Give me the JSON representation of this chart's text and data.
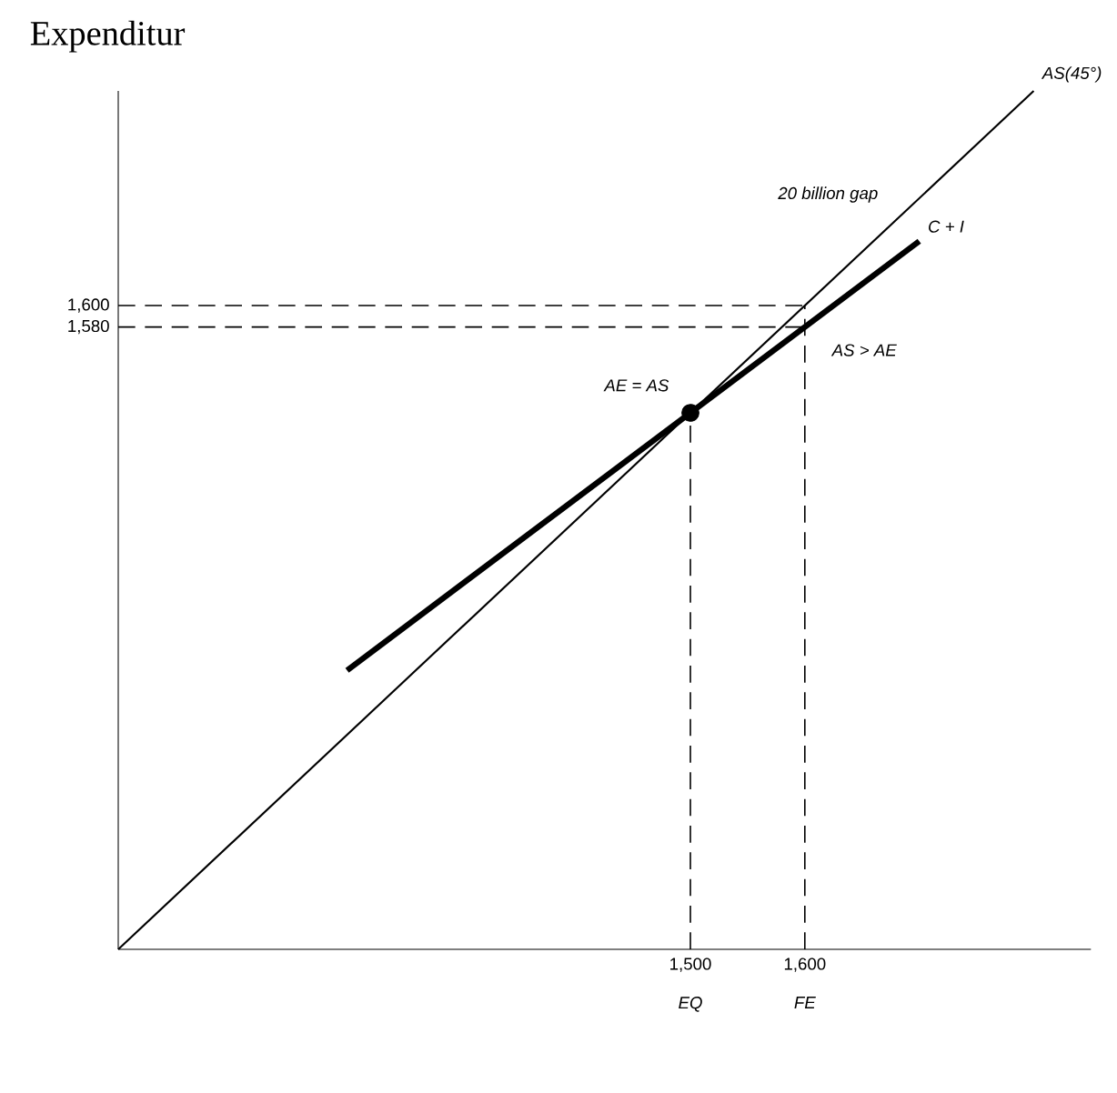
{
  "chart_data": {
    "type": "line",
    "ylabel": "Expenditur",
    "xlim": [
      1000,
      1850
    ],
    "ylim": [
      1000,
      1800
    ],
    "xticks": [
      {
        "value": 1500,
        "label": "1,500"
      },
      {
        "value": 1600,
        "label": "1,600"
      }
    ],
    "yticks": [
      {
        "value": 1580,
        "label": "1,580"
      },
      {
        "value": 1600,
        "label": "1,600"
      }
    ],
    "series": [
      {
        "name": "AS(45°)",
        "x": [
          1000,
          1800
        ],
        "values": [
          1000,
          1800
        ],
        "color": "#000000"
      },
      {
        "name": "C + I",
        "x": [
          1200,
          1700
        ],
        "values": [
          1260,
          1660
        ],
        "color": "#000000"
      },
      {
        "type": "scatter",
        "x": [
          1500
        ],
        "values": [
          1500
        ],
        "color": "#000000",
        "marker": "circle"
      }
    ],
    "ref_lines": [
      {
        "axis": "x",
        "value": 1500,
        "label": "EQ",
        "line_style": "dashed"
      },
      {
        "axis": "x",
        "value": 1600,
        "label": "FE",
        "line_style": "dashed"
      },
      {
        "axis": "y",
        "value": 1600,
        "line_style": "dashed"
      },
      {
        "axis": "y",
        "value": 1580,
        "line_style": "dashed"
      }
    ],
    "annotations": [
      "AE = AS",
      "AS > AE",
      "20 billion gap"
    ]
  }
}
